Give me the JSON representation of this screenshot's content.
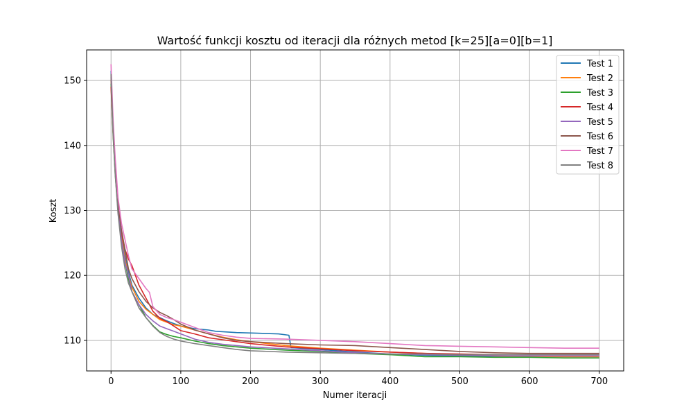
{
  "chart_data": {
    "type": "line",
    "title": "Wartość funkcji kosztu od iteracji dla różnych metod [k=25][a=0][b=1]",
    "xlabel": "Numer iteracji",
    "ylabel": "Koszt",
    "xlim": [
      -35,
      735
    ],
    "ylim": [
      105.3,
      154.7
    ],
    "xticks": [
      0,
      100,
      200,
      300,
      400,
      500,
      600,
      700
    ],
    "yticks": [
      110,
      120,
      130,
      140,
      150
    ],
    "grid": true,
    "legend_position": "top-right",
    "series": [
      {
        "name": "Test 1",
        "color": "#1f77b4",
        "points": [
          [
            0,
            151.5
          ],
          [
            3,
            143
          ],
          [
            6,
            137
          ],
          [
            10,
            131
          ],
          [
            15,
            126.5
          ],
          [
            20,
            123
          ],
          [
            25,
            120.5
          ],
          [
            30,
            118.5
          ],
          [
            40,
            116.5
          ],
          [
            50,
            115
          ],
          [
            60,
            114
          ],
          [
            70,
            113.5
          ],
          [
            80,
            113
          ],
          [
            90,
            112.6
          ],
          [
            100,
            112.2
          ],
          [
            120,
            111.8
          ],
          [
            140,
            111.6
          ],
          [
            150,
            111.4
          ],
          [
            180,
            111.2
          ],
          [
            210,
            111.1
          ],
          [
            240,
            111.0
          ],
          [
            255,
            110.8
          ],
          [
            258,
            108.9
          ],
          [
            300,
            108.6
          ],
          [
            350,
            108.2
          ],
          [
            400,
            107.9
          ],
          [
            450,
            107.7
          ],
          [
            500,
            107.6
          ],
          [
            550,
            107.5
          ],
          [
            600,
            107.5
          ],
          [
            650,
            107.5
          ],
          [
            700,
            107.5
          ]
        ]
      },
      {
        "name": "Test 2",
        "color": "#ff7f0e",
        "points": [
          [
            0,
            150.0
          ],
          [
            3,
            142
          ],
          [
            6,
            136
          ],
          [
            10,
            130.5
          ],
          [
            15,
            126
          ],
          [
            20,
            122.5
          ],
          [
            25,
            120
          ],
          [
            30,
            118.2
          ],
          [
            40,
            116
          ],
          [
            50,
            114.8
          ],
          [
            60,
            114.0
          ],
          [
            70,
            113.2
          ],
          [
            80,
            112.8
          ],
          [
            90,
            112.4
          ],
          [
            100,
            112.2
          ],
          [
            120,
            111.6
          ],
          [
            140,
            111.0
          ],
          [
            160,
            110.5
          ],
          [
            180,
            110.1
          ],
          [
            200,
            109.8
          ],
          [
            250,
            109.2
          ],
          [
            300,
            108.8
          ],
          [
            350,
            108.5
          ],
          [
            400,
            108.2
          ],
          [
            450,
            108.0
          ],
          [
            500,
            107.8
          ],
          [
            550,
            107.6
          ],
          [
            600,
            107.5
          ],
          [
            650,
            107.5
          ],
          [
            700,
            107.5
          ]
        ]
      },
      {
        "name": "Test 3",
        "color": "#2ca02c",
        "points": [
          [
            0,
            149.5
          ],
          [
            3,
            141.5
          ],
          [
            6,
            135.5
          ],
          [
            10,
            130
          ],
          [
            15,
            125.5
          ],
          [
            20,
            122
          ],
          [
            25,
            119.5
          ],
          [
            30,
            117.5
          ],
          [
            40,
            115.5
          ],
          [
            50,
            113.5
          ],
          [
            60,
            112.3
          ],
          [
            70,
            111.3
          ],
          [
            80,
            110.9
          ],
          [
            90,
            110.6
          ],
          [
            100,
            110.4
          ],
          [
            120,
            109.9
          ],
          [
            140,
            109.5
          ],
          [
            160,
            109.2
          ],
          [
            180,
            109.0
          ],
          [
            200,
            108.8
          ],
          [
            250,
            108.5
          ],
          [
            300,
            108.3
          ],
          [
            350,
            108.0
          ],
          [
            400,
            107.8
          ],
          [
            450,
            107.5
          ],
          [
            500,
            107.5
          ],
          [
            550,
            107.4
          ],
          [
            600,
            107.4
          ],
          [
            650,
            107.3
          ],
          [
            700,
            107.3
          ]
        ]
      },
      {
        "name": "Test 4",
        "color": "#d62728",
        "points": [
          [
            0,
            149.0
          ],
          [
            3,
            142
          ],
          [
            6,
            136
          ],
          [
            10,
            130.5
          ],
          [
            15,
            126.5
          ],
          [
            20,
            124
          ],
          [
            25,
            122.5
          ],
          [
            30,
            121.5
          ],
          [
            40,
            118.5
          ],
          [
            50,
            116.5
          ],
          [
            60,
            114.5
          ],
          [
            70,
            113.4
          ],
          [
            80,
            112.9
          ],
          [
            90,
            112.2
          ],
          [
            100,
            111.5
          ],
          [
            120,
            111.0
          ],
          [
            140,
            110.4
          ],
          [
            160,
            110.1
          ],
          [
            180,
            109.8
          ],
          [
            200,
            109.5
          ],
          [
            250,
            109.0
          ],
          [
            300,
            108.7
          ],
          [
            350,
            108.4
          ],
          [
            400,
            108.2
          ],
          [
            450,
            108.0
          ],
          [
            500,
            107.9
          ],
          [
            550,
            107.8
          ],
          [
            600,
            107.8
          ],
          [
            650,
            107.8
          ],
          [
            700,
            107.8
          ]
        ]
      },
      {
        "name": "Test 5",
        "color": "#9467bd",
        "points": [
          [
            0,
            150.5
          ],
          [
            3,
            142.5
          ],
          [
            6,
            136
          ],
          [
            10,
            130
          ],
          [
            15,
            125.5
          ],
          [
            20,
            122
          ],
          [
            25,
            120
          ],
          [
            30,
            117.5
          ],
          [
            40,
            115.5
          ],
          [
            50,
            114.0
          ],
          [
            60,
            113.0
          ],
          [
            70,
            112.2
          ],
          [
            80,
            111.8
          ],
          [
            90,
            111.4
          ],
          [
            100,
            111.0
          ],
          [
            120,
            110.2
          ],
          [
            140,
            109.7
          ],
          [
            160,
            109.4
          ],
          [
            180,
            109.2
          ],
          [
            200,
            109.0
          ],
          [
            250,
            108.7
          ],
          [
            300,
            108.4
          ],
          [
            350,
            108.1
          ],
          [
            400,
            107.9
          ],
          [
            450,
            107.8
          ],
          [
            500,
            107.7
          ],
          [
            550,
            107.6
          ],
          [
            600,
            107.6
          ],
          [
            650,
            107.6
          ],
          [
            700,
            107.6
          ]
        ]
      },
      {
        "name": "Test 6",
        "color": "#8c564b",
        "points": [
          [
            0,
            150.8
          ],
          [
            3,
            142.5
          ],
          [
            6,
            136.5
          ],
          [
            10,
            131
          ],
          [
            15,
            127
          ],
          [
            20,
            124
          ],
          [
            25,
            121
          ],
          [
            30,
            119.5
          ],
          [
            40,
            117.5
          ],
          [
            50,
            116.0
          ],
          [
            60,
            115.0
          ],
          [
            70,
            114.3
          ],
          [
            80,
            113.8
          ],
          [
            90,
            113.2
          ],
          [
            100,
            112.5
          ],
          [
            120,
            111.6
          ],
          [
            140,
            111.0
          ],
          [
            160,
            110.4
          ],
          [
            180,
            110.0
          ],
          [
            200,
            109.8
          ],
          [
            250,
            109.5
          ],
          [
            300,
            109.3
          ],
          [
            350,
            109.2
          ],
          [
            400,
            108.9
          ],
          [
            450,
            108.6
          ],
          [
            500,
            108.3
          ],
          [
            550,
            108.1
          ],
          [
            600,
            108.0
          ],
          [
            650,
            108.0
          ],
          [
            700,
            108.0
          ]
        ]
      },
      {
        "name": "Test 7",
        "color": "#e377c2",
        "points": [
          [
            0,
            152.5
          ],
          [
            3,
            144
          ],
          [
            6,
            138
          ],
          [
            10,
            132
          ],
          [
            15,
            128
          ],
          [
            20,
            125.5
          ],
          [
            25,
            123
          ],
          [
            30,
            121
          ],
          [
            40,
            119.5
          ],
          [
            50,
            118.0
          ],
          [
            55,
            117.4
          ],
          [
            60,
            115.2
          ],
          [
            70,
            114.0
          ],
          [
            80,
            113.5
          ],
          [
            90,
            113.2
          ],
          [
            100,
            112.8
          ],
          [
            120,
            112.0
          ],
          [
            140,
            111.2
          ],
          [
            160,
            110.8
          ],
          [
            180,
            110.5
          ],
          [
            200,
            110.3
          ],
          [
            250,
            110.2
          ],
          [
            300,
            110.0
          ],
          [
            350,
            109.8
          ],
          [
            400,
            109.5
          ],
          [
            450,
            109.2
          ],
          [
            500,
            109.1
          ],
          [
            550,
            109.0
          ],
          [
            600,
            108.9
          ],
          [
            650,
            108.8
          ],
          [
            700,
            108.8
          ]
        ]
      },
      {
        "name": "Test 8",
        "color": "#7f7f7f",
        "points": [
          [
            0,
            151.0
          ],
          [
            3,
            142
          ],
          [
            6,
            135.5
          ],
          [
            10,
            129.5
          ],
          [
            15,
            124.5
          ],
          [
            20,
            121
          ],
          [
            25,
            118.8
          ],
          [
            30,
            117.5
          ],
          [
            40,
            115.0
          ],
          [
            50,
            113.5
          ],
          [
            60,
            112.2
          ],
          [
            70,
            111.2
          ],
          [
            80,
            110.6
          ],
          [
            90,
            110.2
          ],
          [
            100,
            109.9
          ],
          [
            120,
            109.5
          ],
          [
            140,
            109.2
          ],
          [
            160,
            108.9
          ],
          [
            180,
            108.6
          ],
          [
            200,
            108.4
          ],
          [
            250,
            108.2
          ],
          [
            300,
            108.1
          ],
          [
            350,
            108.0
          ],
          [
            400,
            107.9
          ],
          [
            450,
            107.9
          ],
          [
            500,
            107.8
          ],
          [
            550,
            107.8
          ],
          [
            600,
            107.8
          ],
          [
            650,
            107.8
          ],
          [
            700,
            107.8
          ]
        ]
      }
    ]
  }
}
